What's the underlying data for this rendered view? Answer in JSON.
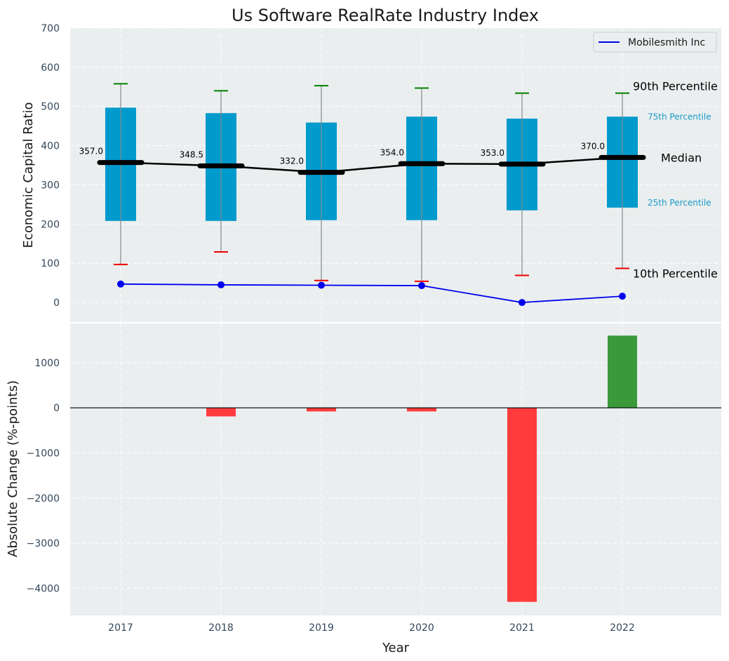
{
  "chart_data": {
    "title": "Us Software RealRate Industry Index",
    "xlabel": "Year",
    "x_tick_labels": [
      "2017",
      "2018",
      "2019",
      "2020",
      "2021",
      "2022"
    ],
    "grid": true,
    "colors": {
      "panel_background": "#eaeeef",
      "box": "#009acd",
      "company_line": "#0000ee",
      "p90_cap": "#008000",
      "p10_cap": "#ee0000",
      "whisker": "#7f8c8d",
      "bar_negative": "#ff3b3b",
      "bar_positive": "#3a9a3a",
      "percentile_label": "#1a9ac8"
    },
    "top_panel": {
      "type": "box",
      "ylabel": "Economic Capital Ratio",
      "ylim": [
        -50,
        700
      ],
      "y_ticks": [
        0,
        100,
        200,
        300,
        400,
        500,
        600,
        700
      ],
      "p10": [
        97,
        129,
        56,
        54,
        69,
        87
      ],
      "p25": [
        208,
        208,
        210,
        210,
        235,
        242
      ],
      "median": [
        357.0,
        348.5,
        332.0,
        354.0,
        353.0,
        370.0
      ],
      "median_labels": [
        "357.0",
        "348.5",
        "332.0",
        "354.0",
        "353.0",
        "370.0"
      ],
      "p75": [
        497,
        483,
        459,
        474,
        469,
        474
      ],
      "p90": [
        558,
        540,
        553,
        547,
        534,
        534
      ],
      "company_series": {
        "name": "Mobilesmith Inc",
        "values": [
          47,
          45,
          44,
          43,
          0,
          16
        ]
      },
      "legend": {
        "position": "upper right",
        "entries": [
          "Mobilesmith Inc"
        ]
      },
      "annotations": {
        "p90": "90th Percentile",
        "p75": "75th Percentile",
        "median": "Median",
        "p25": "25th Percentile",
        "p10": "10th Percentile"
      }
    },
    "bottom_panel": {
      "type": "bar",
      "ylabel": "Absolute Change (%-points)",
      "ylim": [
        -4600,
        1900
      ],
      "y_ticks": [
        1000,
        0,
        -1000,
        -2000,
        -3000,
        -4000
      ],
      "y_tick_labels": [
        "1000",
        "0",
        "−1000",
        "−2000",
        "−3000",
        "−4000"
      ],
      "values": [
        0,
        -190,
        -80,
        -80,
        -4300,
        1600
      ]
    }
  }
}
